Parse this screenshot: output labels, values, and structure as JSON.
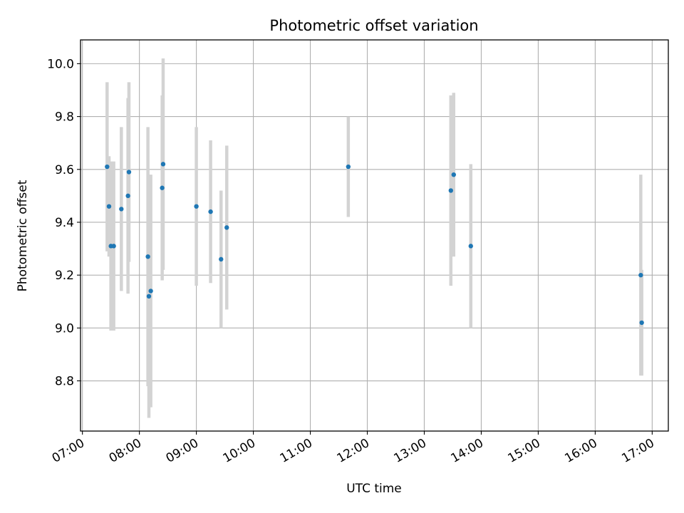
{
  "chart_data": {
    "type": "scatter",
    "title": "Photometric offset variation",
    "xlabel": "UTC time",
    "ylabel": "Photometric offset",
    "x_ticks": [
      "07:00",
      "08:00",
      "09:00",
      "10:00",
      "11:00",
      "12:00",
      "13:00",
      "14:00",
      "15:00",
      "16:00",
      "17:00"
    ],
    "y_ticks": [
      "8.8",
      "9.0",
      "9.2",
      "9.4",
      "9.6",
      "9.8",
      "10.0"
    ],
    "xlim": [
      "06:58",
      "17:17"
    ],
    "ylim": [
      8.61,
      10.09
    ],
    "grid": true,
    "marker_color": "#1f77b4",
    "errorbar_color": "#d3d3d3",
    "points": [
      {
        "x": "07:26",
        "y": 9.61,
        "yerr": 0.32
      },
      {
        "x": "07:28",
        "y": 9.46,
        "yerr": 0.19
      },
      {
        "x": "07:30",
        "y": 9.31,
        "yerr": 0.32
      },
      {
        "x": "07:33",
        "y": 9.31,
        "yerr": 0.32
      },
      {
        "x": "07:41",
        "y": 9.45,
        "yerr": 0.31
      },
      {
        "x": "07:48",
        "y": 9.5,
        "yerr": 0.37
      },
      {
        "x": "07:49",
        "y": 9.59,
        "yerr": 0.34
      },
      {
        "x": "08:09",
        "y": 9.27,
        "yerr": 0.49
      },
      {
        "x": "08:10",
        "y": 9.12,
        "yerr": 0.46
      },
      {
        "x": "08:12",
        "y": 9.14,
        "yerr": 0.44
      },
      {
        "x": "08:24",
        "y": 9.53,
        "yerr": 0.35
      },
      {
        "x": "08:25",
        "y": 9.62,
        "yerr": 0.4
      },
      {
        "x": "09:00",
        "y": 9.46,
        "yerr": 0.3
      },
      {
        "x": "09:15",
        "y": 9.44,
        "yerr": 0.27
      },
      {
        "x": "09:26",
        "y": 9.26,
        "yerr": 0.26
      },
      {
        "x": "09:32",
        "y": 9.38,
        "yerr": 0.31
      },
      {
        "x": "11:40",
        "y": 9.61,
        "yerr": 0.19
      },
      {
        "x": "13:28",
        "y": 9.52,
        "yerr": 0.36
      },
      {
        "x": "13:31",
        "y": 9.58,
        "yerr": 0.31
      },
      {
        "x": "13:49",
        "y": 9.31,
        "yerr": 0.31
      },
      {
        "x": "16:48",
        "y": 9.2,
        "yerr": 0.38
      },
      {
        "x": "16:49",
        "y": 9.02,
        "yerr": 0.2
      }
    ]
  }
}
